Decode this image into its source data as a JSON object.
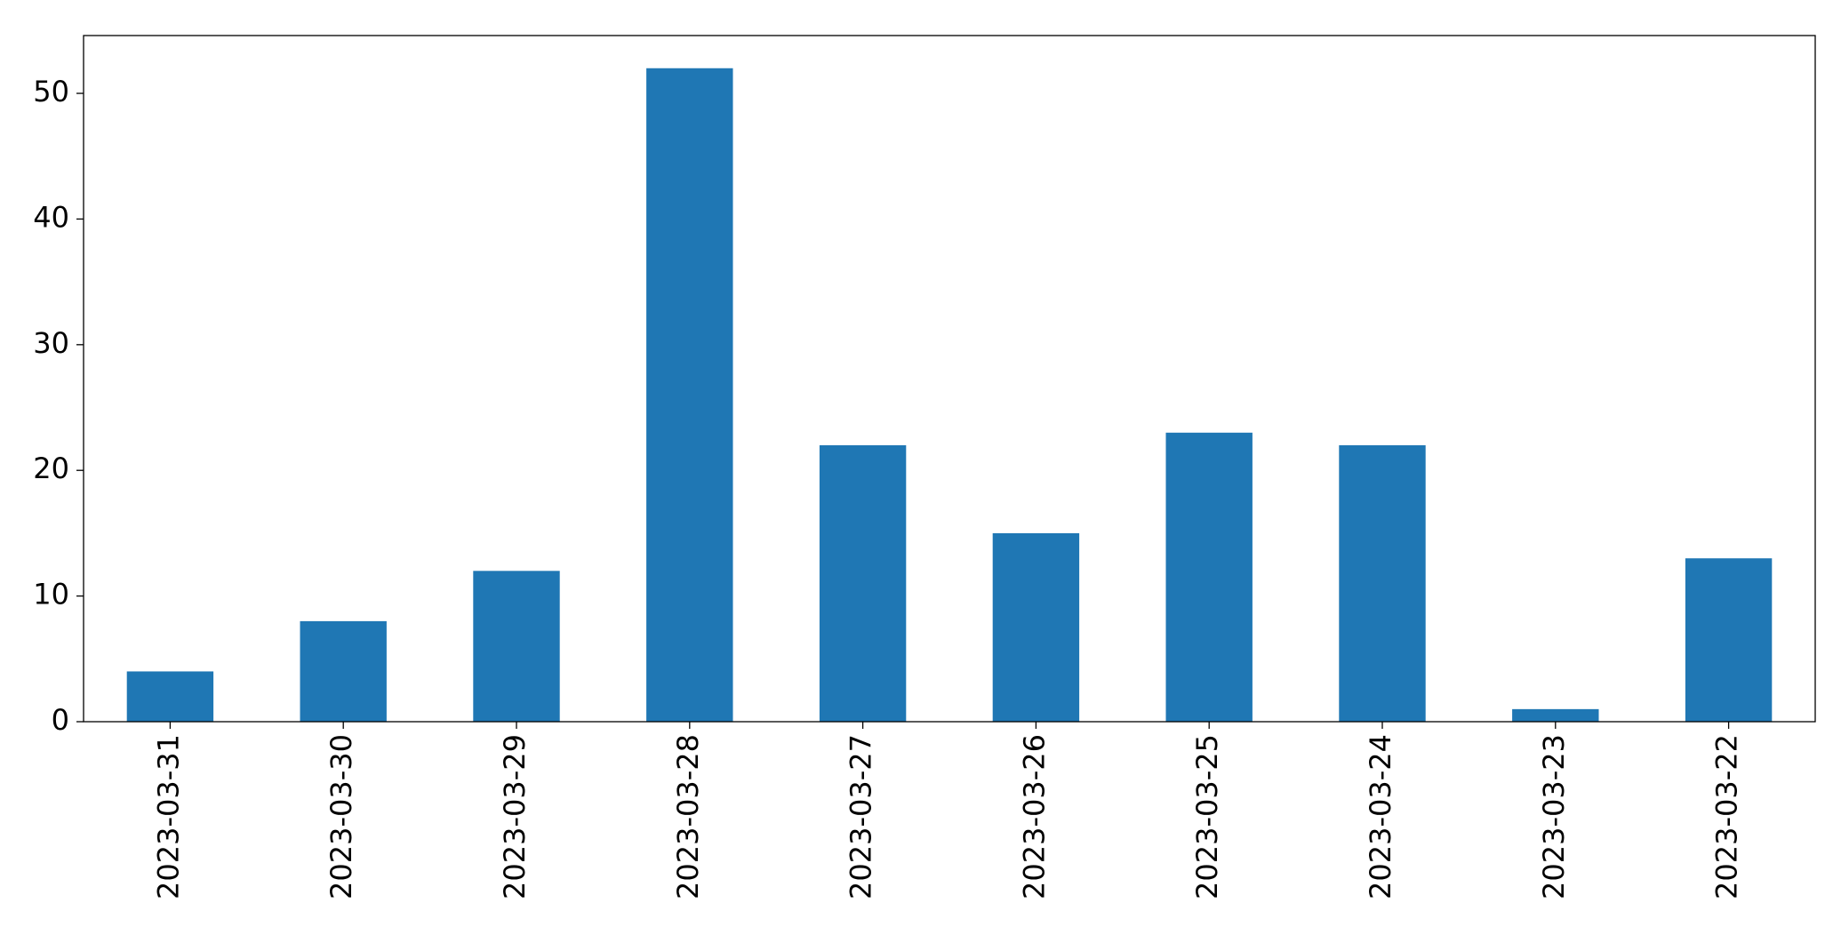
{
  "chart_data": {
    "type": "bar",
    "categories": [
      "2023-03-31",
      "2023-03-30",
      "2023-03-29",
      "2023-03-28",
      "2023-03-27",
      "2023-03-26",
      "2023-03-25",
      "2023-03-24",
      "2023-03-23",
      "2023-03-22"
    ],
    "values": [
      4,
      8,
      12,
      52,
      22,
      15,
      23,
      22,
      1,
      13
    ],
    "color": "#1f77b4",
    "ylim": [
      0,
      54.6
    ],
    "yticks": [
      0,
      10,
      20,
      30,
      40,
      50
    ],
    "grid": false
  }
}
